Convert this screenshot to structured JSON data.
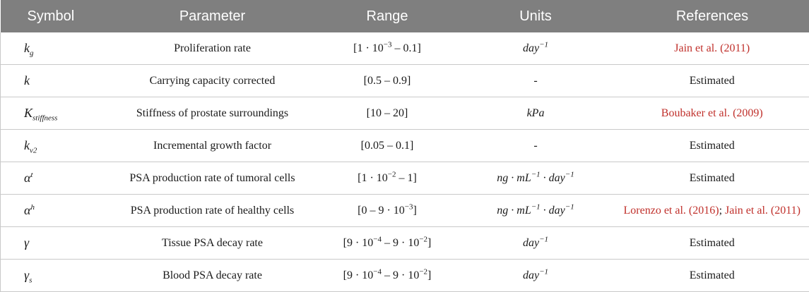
{
  "header": {
    "symbol": "Symbol",
    "parameter": "Parameter",
    "range": "Range",
    "units": "Units",
    "references": "References"
  },
  "rows": [
    {
      "symbol": {
        "base": "k",
        "sub": "g",
        "sup": ""
      },
      "parameter": "Proliferation rate",
      "range": {
        "pre": "[1 · 10",
        "sup": "−3",
        "post": " – 0.1]"
      },
      "units": {
        "text": "day",
        "sup": "−1",
        "tail": ""
      },
      "references": [
        {
          "text": "Jain et al. (2011)",
          "link": true
        }
      ]
    },
    {
      "symbol": {
        "base": "k",
        "sub": "",
        "sup": ""
      },
      "parameter": "Carrying capacity corrected",
      "range": {
        "pre": "[0.5 – 0.9]",
        "sup": "",
        "post": ""
      },
      "units": {
        "text": "-",
        "sup": "",
        "tail": ""
      },
      "references": [
        {
          "text": "Estimated",
          "link": false
        }
      ]
    },
    {
      "symbol": {
        "base": "K",
        "sub": "stiffness",
        "sup": ""
      },
      "parameter": "Stiffness of prostate surroundings",
      "range": {
        "pre": "[10 – 20]",
        "sup": "",
        "post": ""
      },
      "units": {
        "text": "kPa",
        "sup": "",
        "tail": ""
      },
      "references": [
        {
          "text": "Boubaker et al. (2009)",
          "link": true
        }
      ]
    },
    {
      "symbol": {
        "base": "k",
        "sub": "v2",
        "sup": ""
      },
      "parameter": "Incremental growth factor",
      "range": {
        "pre": "[0.05 – 0.1]",
        "sup": "",
        "post": ""
      },
      "units": {
        "text": "-",
        "sup": "",
        "tail": ""
      },
      "references": [
        {
          "text": "Estimated",
          "link": false
        }
      ]
    },
    {
      "symbol": {
        "base": "α",
        "sub": "",
        "sup": "t"
      },
      "parameter": "PSA production rate of tumoral cells",
      "range": {
        "pre": "[1 · 10",
        "sup": "−2",
        "post": " – 1]"
      },
      "units": {
        "text": "ng · mL",
        "sup": "−1",
        "tail": " · day",
        "tailsup": "−1"
      },
      "references": [
        {
          "text": "Estimated",
          "link": false
        }
      ]
    },
    {
      "symbol": {
        "base": "α",
        "sub": "",
        "sup": "h"
      },
      "parameter": "PSA production rate of healthy cells",
      "range": {
        "pre": "[0 – 9 · 10",
        "sup": "−3",
        "post": "]"
      },
      "units": {
        "text": "ng · mL",
        "sup": "−1",
        "tail": " · day",
        "tailsup": "−1"
      },
      "references": [
        {
          "text": "Lorenzo et al. (2016)",
          "link": true
        },
        {
          "text": "; ",
          "link": false
        },
        {
          "text": "Jain et al. (2011)",
          "link": true
        }
      ]
    },
    {
      "symbol": {
        "base": "γ",
        "sub": "",
        "sup": ""
      },
      "parameter": "Tissue PSA decay rate",
      "range": {
        "pre": "[9 · 10",
        "sup": "−4",
        "post": " – 9 · 10",
        "sup2": "−2",
        "post2": "]"
      },
      "units": {
        "text": "day",
        "sup": "−1",
        "tail": ""
      },
      "references": [
        {
          "text": "Estimated",
          "link": false
        }
      ]
    },
    {
      "symbol": {
        "base": "γ",
        "sub": "s",
        "sup": ""
      },
      "parameter": "Blood PSA decay rate",
      "range": {
        "pre": "[9 · 10",
        "sup": "−4",
        "post": " – 9 · 10",
        "sup2": "−2",
        "post2": "]"
      },
      "units": {
        "text": "day",
        "sup": "−1",
        "tail": ""
      },
      "references": [
        {
          "text": "Estimated",
          "link": false
        }
      ]
    }
  ]
}
